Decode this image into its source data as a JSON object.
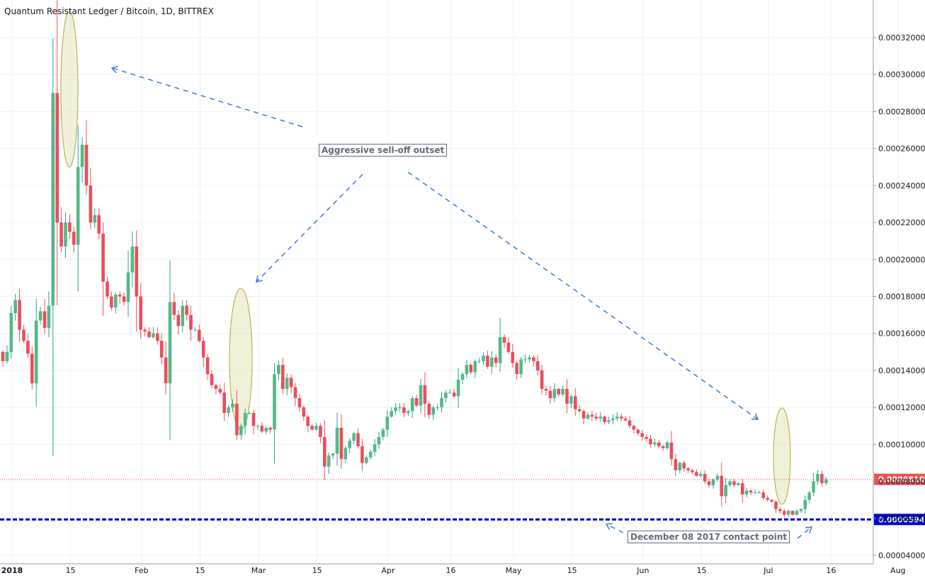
{
  "chart_data": {
    "type": "candlestick",
    "title": "Quantum Resistant Ledger / Bitcoin, 1D, BITTREX",
    "ylim": [
      3.6e-05,
      0.000345
    ],
    "y_ticks": [
      "0.00004000",
      "0.00006000",
      "0.00008000",
      "0.00010000",
      "0.00012000",
      "0.00014000",
      "0.00016000",
      "0.00018000",
      "0.00020000",
      "0.00022000",
      "0.00024000",
      "0.00026000",
      "0.00028000",
      "0.00030000",
      "0.00032000"
    ],
    "x_ticks": [
      {
        "label": "2018",
        "date": "2018-01-01",
        "bold": true
      },
      {
        "label": "15",
        "date": "2018-01-15"
      },
      {
        "label": "Feb",
        "date": "2018-02-01"
      },
      {
        "label": "15",
        "date": "2018-02-15"
      },
      {
        "label": "Mar",
        "date": "2018-03-01"
      },
      {
        "label": "15",
        "date": "2018-03-15"
      },
      {
        "label": "Apr",
        "date": "2018-04-01"
      },
      {
        "label": "16",
        "date": "2018-04-16"
      },
      {
        "label": "May",
        "date": "2018-05-01"
      },
      {
        "label": "15",
        "date": "2018-05-15"
      },
      {
        "label": "Jun",
        "date": "2018-06-01"
      },
      {
        "label": "15",
        "date": "2018-06-15"
      },
      {
        "label": "Jul",
        "date": "2018-07-01"
      },
      {
        "label": "16",
        "date": "2018-07-16"
      },
      {
        "label": "Aug",
        "date": "2018-08-01"
      }
    ],
    "last_price": {
      "label": "0.00008109",
      "value": 8.109e-05,
      "color": "#ef5350"
    },
    "support": {
      "label": "0.00005940",
      "value": 5.94e-05,
      "color": "#0000cc"
    },
    "up_color": "#26a69a",
    "down_color": "#ef5350",
    "up_fill": "#53b987",
    "down_fill": "#eb4d5c",
    "closes": [
      0.000145,
      0.00015,
      0.000171,
      0.000178,
      0.000162,
      0.000156,
      0.000149,
      0.000133,
      0.000167,
      0.000172,
      0.000163,
      0.000175,
      0.00029,
      0.00022,
      0.000207,
      0.00022,
      0.000215,
      0.000208,
      0.00025,
      0.000262,
      0.00024,
      0.00022,
      0.000224,
      0.000214,
      0.000188,
      0.00018,
      0.000174,
      0.000181,
      0.00018,
      0.000177,
      0.000193,
      0.000207,
      0.00018,
      0.000162,
      0.000161,
      0.000158,
      0.00016,
      0.000156,
      0.000147,
      0.000133,
      0.000177,
      0.00017,
      0.000164,
      0.000175,
      0.00017,
      0.000162,
      0.000162,
      0.000156,
      0.000147,
      0.000138,
      0.000132,
      0.00013,
      0.000128,
      0.000117,
      0.00012,
      0.000122,
      0.000105,
      0.00011,
      0.000117,
      0.000117,
      0.00011,
      0.00011,
      0.000107,
      0.000109,
      0.000108,
      0.000138,
      0.000143,
      0.00013,
      0.000136,
      0.000131,
      0.000125,
      0.00012,
      0.000115,
      0.00011,
      0.000108,
      0.00011,
      0.000104,
      8.8e-05,
      9.4e-05,
      9.5e-05,
      0.000109,
      9.2e-05,
      9.8e-05,
      0.000102,
      0.000106,
      9.9e-05,
      9e-05,
      9.3e-05,
      9.6e-05,
      0.0001,
      0.000104,
      0.000108,
      0.000115,
      0.000118,
      0.00012,
      0.00012,
      0.000117,
      0.000118,
      0.000125,
      0.000121,
      0.000132,
      0.000122,
      0.000116,
      0.00012,
      0.00012,
      0.000125,
      0.000128,
      0.000128,
      0.000126,
      0.000135,
      0.000138,
      0.000143,
      0.000139,
      0.000145,
      0.000145,
      0.000148,
      0.000142,
      0.000147,
      0.000144,
      0.000158,
      0.000155,
      0.00015,
      0.000144,
      0.000138,
      0.000146,
      0.000146,
      0.000147,
      0.000145,
      0.00014,
      0.00013,
      0.000129,
      0.000125,
      0.00013,
      0.000127,
      0.00013,
      0.000122,
      0.000126,
      0.000119,
      0.000118,
      0.000114,
      0.000116,
      0.000115,
      0.000114,
      0.000115,
      0.000112,
      0.000113,
      0.000114,
      0.000115,
      0.000114,
      0.000113,
      0.00011,
      0.000108,
      0.000106,
      0.000104,
      0.000103,
      0.0001,
      0.000101,
      9.9e-05,
      9.8e-05,
      0.000101,
      9.2e-05,
      8.6e-05,
      9e-05,
      8.7e-05,
      8.6e-05,
      8.5e-05,
      8.3e-05,
      8.4e-05,
      8e-05,
      7.8e-05,
      8.1e-05,
      8.3e-05,
      7.2e-05,
      7.8e-05,
      8e-05,
      7.8e-05,
      7.9e-05,
      7.3e-05,
      7.5e-05,
      7.4e-05,
      7.4e-05,
      7.4e-05,
      7.1e-05,
      7e-05,
      6.9e-05,
      6.5e-05,
      6.4e-05,
      6.2e-05,
      6.4e-05,
      6.2e-05,
      6.4e-05,
      6.5e-05,
      7e-05,
      7.4e-05,
      8e-05,
      8.4e-05,
      7.9e-05,
      8.1e-05
    ]
  },
  "annotations": {
    "sell_off": "Aggressive sell-off outset",
    "contact": "December 08 2017 contact point"
  }
}
